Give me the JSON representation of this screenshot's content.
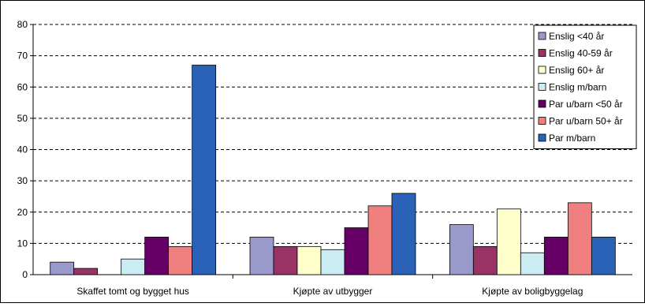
{
  "chart_data": {
    "type": "bar",
    "title": "",
    "xlabel": "",
    "ylabel": "",
    "ylim": [
      0,
      80
    ],
    "yticks": [
      0,
      10,
      20,
      30,
      40,
      50,
      60,
      70,
      80
    ],
    "grid": "horizontal dashed",
    "legend_position": "top-right",
    "categories": [
      "Skaffet tomt og bygget hus",
      "Kjøpte av utbygger",
      "Kjøpte av boligbyggelag"
    ],
    "series": [
      {
        "name": "Enslig <40 år",
        "color": "#9999cc",
        "values": [
          4,
          12,
          16
        ]
      },
      {
        "name": "Enslig 40-59 år",
        "color": "#993366",
        "values": [
          2,
          9,
          9
        ]
      },
      {
        "name": "Enslig 60+ år",
        "color": "#ffffcc",
        "values": [
          0,
          9,
          21
        ]
      },
      {
        "name": "Enslig m/barn",
        "color": "#ccecf4",
        "values": [
          5,
          8,
          7
        ]
      },
      {
        "name": "Par u/barn <50 år",
        "color": "#660066",
        "values": [
          12,
          15,
          12
        ]
      },
      {
        "name": "Par u/barn 50+ år",
        "color": "#f08080",
        "values": [
          9,
          22,
          23
        ]
      },
      {
        "name": "Par m/barn",
        "color": "#2a62b8",
        "values": [
          67,
          26,
          12
        ]
      }
    ]
  }
}
